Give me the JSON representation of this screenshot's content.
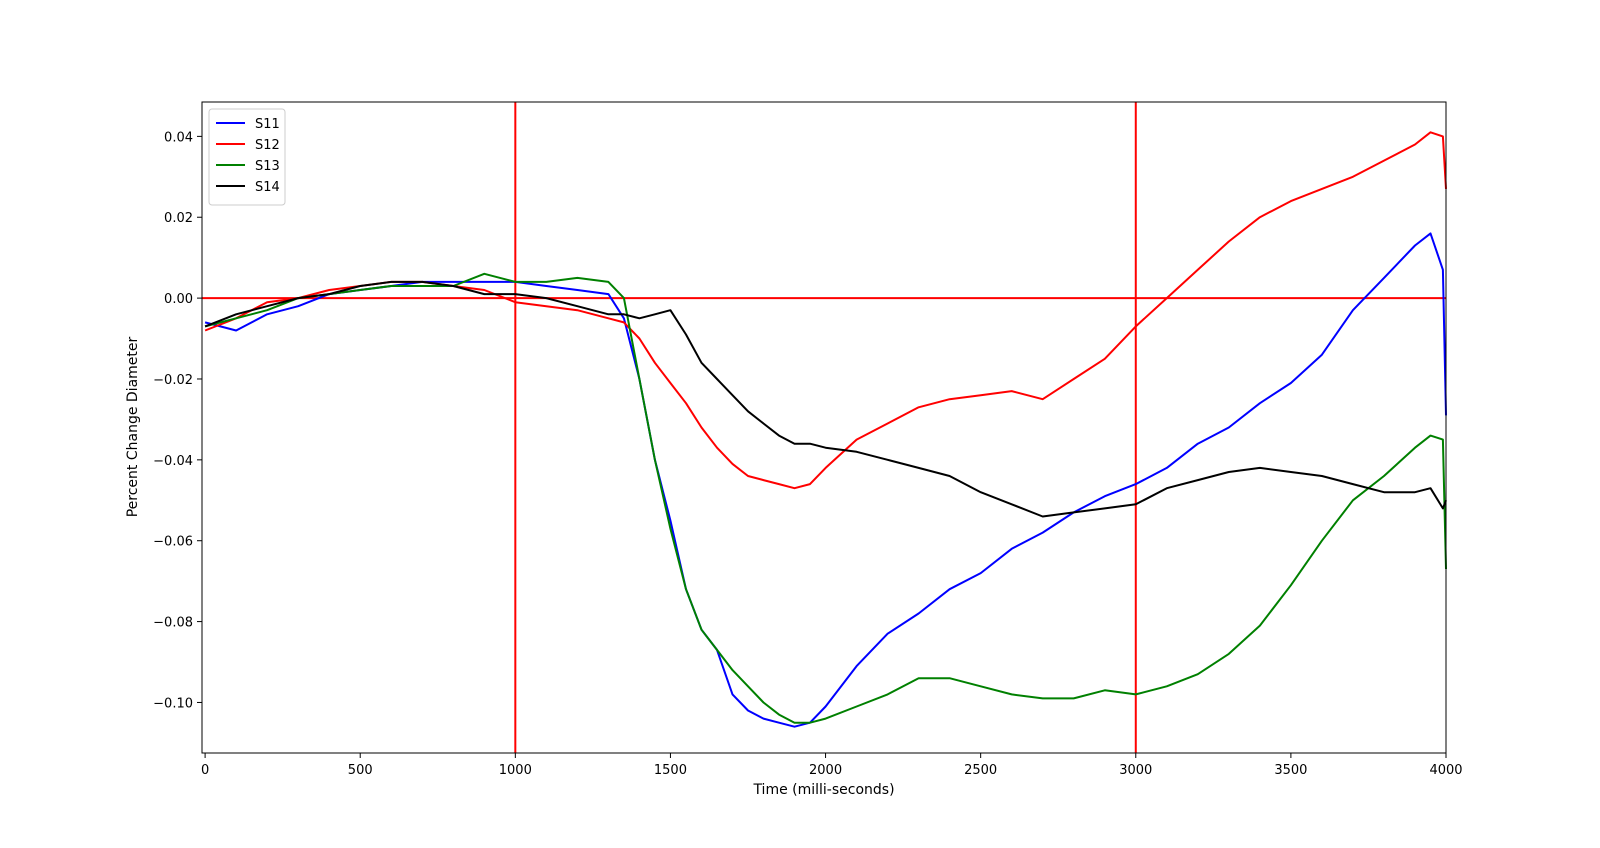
{
  "chart_data": {
    "type": "line",
    "title": "",
    "xlabel": "Time (milli-seconds)",
    "ylabel": "Percent Change Diameter",
    "xlim": [
      -10,
      4000
    ],
    "ylim": [
      -0.1125,
      0.0485
    ],
    "xticks": [
      0,
      500,
      1000,
      1500,
      2000,
      2500,
      3000,
      3500,
      4000
    ],
    "xtick_labels": [
      "0",
      "500",
      "1000",
      "1500",
      "2000",
      "2500",
      "3000",
      "3500",
      "4000"
    ],
    "yticks": [
      0.04,
      0.02,
      0.0,
      -0.02,
      -0.04,
      -0.06,
      -0.08,
      -0.1
    ],
    "ytick_labels": [
      "0.04",
      "0.02",
      "0.00",
      "−0.02",
      "−0.04",
      "−0.06",
      "−0.08",
      "−0.10"
    ],
    "grid": false,
    "legend_position": "top-left",
    "reference_lines": {
      "color": "#ff0000",
      "vertical_x": [
        1000,
        3000
      ],
      "horizontal_y": [
        0.0
      ]
    },
    "series": [
      {
        "name": "S11",
        "color": "#0000ff",
        "x": [
          0,
          100,
          200,
          300,
          400,
          500,
          600,
          700,
          800,
          900,
          1000,
          1100,
          1200,
          1300,
          1350,
          1400,
          1450,
          1500,
          1550,
          1600,
          1650,
          1700,
          1750,
          1800,
          1850,
          1900,
          1950,
          2000,
          2100,
          2200,
          2300,
          2400,
          2500,
          2600,
          2700,
          2800,
          2900,
          3000,
          3100,
          3200,
          3300,
          3400,
          3500,
          3600,
          3700,
          3800,
          3900,
          3950,
          3990,
          4000
        ],
        "y": [
          -0.006,
          -0.008,
          -0.004,
          -0.002,
          0.001,
          0.002,
          0.003,
          0.004,
          0.004,
          0.004,
          0.004,
          0.003,
          0.002,
          0.001,
          -0.005,
          -0.02,
          -0.04,
          -0.055,
          -0.072,
          -0.082,
          -0.087,
          -0.098,
          -0.102,
          -0.104,
          -0.105,
          -0.106,
          -0.105,
          -0.101,
          -0.091,
          -0.083,
          -0.078,
          -0.072,
          -0.068,
          -0.062,
          -0.058,
          -0.053,
          -0.049,
          -0.046,
          -0.042,
          -0.036,
          -0.032,
          -0.026,
          -0.021,
          -0.014,
          -0.003,
          0.005,
          0.013,
          0.016,
          0.007,
          -0.029
        ]
      },
      {
        "name": "S12",
        "color": "#ff0000",
        "x": [
          0,
          100,
          200,
          300,
          400,
          500,
          600,
          700,
          800,
          900,
          1000,
          1100,
          1200,
          1300,
          1350,
          1400,
          1450,
          1500,
          1550,
          1600,
          1650,
          1700,
          1750,
          1800,
          1850,
          1900,
          1950,
          2000,
          2100,
          2200,
          2300,
          2400,
          2500,
          2600,
          2700,
          2800,
          2900,
          3000,
          3100,
          3200,
          3300,
          3400,
          3500,
          3600,
          3700,
          3800,
          3900,
          3950,
          3990,
          4000
        ],
        "y": [
          -0.008,
          -0.005,
          -0.001,
          0.0,
          0.002,
          0.003,
          0.004,
          0.004,
          0.003,
          0.002,
          -0.001,
          -0.002,
          -0.003,
          -0.005,
          -0.006,
          -0.01,
          -0.016,
          -0.021,
          -0.026,
          -0.032,
          -0.037,
          -0.041,
          -0.044,
          -0.045,
          -0.046,
          -0.047,
          -0.046,
          -0.042,
          -0.035,
          -0.031,
          -0.027,
          -0.025,
          -0.024,
          -0.023,
          -0.025,
          -0.02,
          -0.015,
          -0.007,
          0.0,
          0.007,
          0.014,
          0.02,
          0.024,
          0.027,
          0.03,
          0.034,
          0.038,
          0.041,
          0.04,
          0.027
        ]
      },
      {
        "name": "S13",
        "color": "#008000",
        "x": [
          0,
          100,
          200,
          300,
          400,
          500,
          600,
          700,
          800,
          900,
          1000,
          1100,
          1200,
          1300,
          1350,
          1400,
          1450,
          1500,
          1550,
          1600,
          1650,
          1700,
          1750,
          1800,
          1850,
          1900,
          1950,
          2000,
          2100,
          2200,
          2300,
          2400,
          2500,
          2600,
          2700,
          2800,
          2900,
          3000,
          3100,
          3200,
          3300,
          3400,
          3500,
          3600,
          3700,
          3800,
          3900,
          3950,
          3990,
          4000
        ],
        "y": [
          -0.007,
          -0.005,
          -0.003,
          0.0,
          0.001,
          0.002,
          0.003,
          0.003,
          0.003,
          0.006,
          0.004,
          0.004,
          0.005,
          0.004,
          0.0,
          -0.02,
          -0.04,
          -0.057,
          -0.072,
          -0.082,
          -0.087,
          -0.092,
          -0.096,
          -0.1,
          -0.103,
          -0.105,
          -0.105,
          -0.104,
          -0.101,
          -0.098,
          -0.094,
          -0.094,
          -0.096,
          -0.098,
          -0.099,
          -0.099,
          -0.097,
          -0.098,
          -0.096,
          -0.093,
          -0.088,
          -0.081,
          -0.071,
          -0.06,
          -0.05,
          -0.044,
          -0.037,
          -0.034,
          -0.035,
          -0.067
        ]
      },
      {
        "name": "S14",
        "color": "#000000",
        "x": [
          0,
          100,
          200,
          300,
          400,
          500,
          600,
          700,
          800,
          900,
          1000,
          1100,
          1200,
          1300,
          1350,
          1400,
          1450,
          1500,
          1550,
          1600,
          1650,
          1700,
          1750,
          1800,
          1850,
          1900,
          1950,
          2000,
          2100,
          2200,
          2300,
          2400,
          2500,
          2600,
          2700,
          2800,
          2900,
          3000,
          3100,
          3200,
          3300,
          3400,
          3500,
          3600,
          3700,
          3800,
          3900,
          3950,
          3990,
          4000
        ],
        "y": [
          -0.007,
          -0.004,
          -0.002,
          0.0,
          0.001,
          0.003,
          0.004,
          0.004,
          0.003,
          0.001,
          0.001,
          0.0,
          -0.002,
          -0.004,
          -0.004,
          -0.005,
          -0.004,
          -0.003,
          -0.009,
          -0.016,
          -0.02,
          -0.024,
          -0.028,
          -0.031,
          -0.034,
          -0.036,
          -0.036,
          -0.037,
          -0.038,
          -0.04,
          -0.042,
          -0.044,
          -0.048,
          -0.051,
          -0.054,
          -0.053,
          -0.052,
          -0.051,
          -0.047,
          -0.045,
          -0.043,
          -0.042,
          -0.043,
          -0.044,
          -0.046,
          -0.048,
          -0.048,
          -0.047,
          -0.052,
          -0.05
        ]
      }
    ]
  }
}
